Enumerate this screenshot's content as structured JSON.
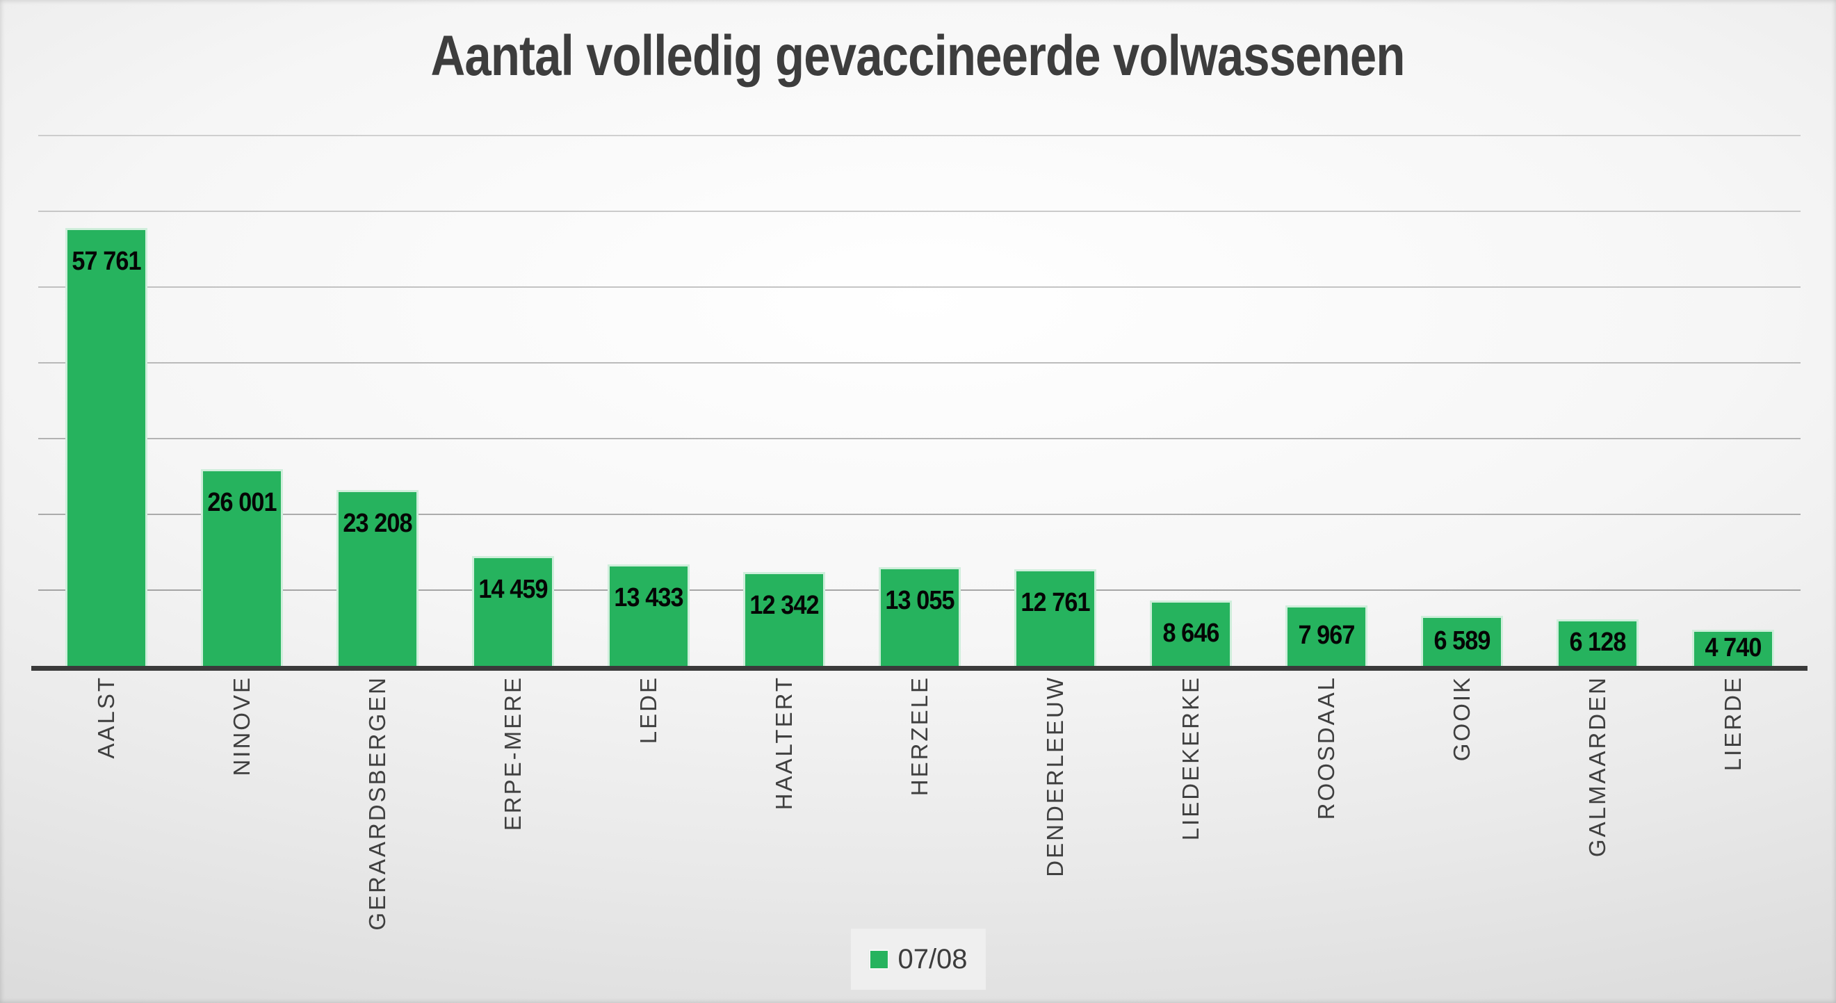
{
  "title": "Aantal volledig gevaccineerde volwassenen",
  "legend": {
    "series_label": "07/08",
    "position": "bottom"
  },
  "colors": {
    "bar": "#26b35e",
    "gridline": "#8f8f8f",
    "axis": "#3a3a3a",
    "title_text": "#3d3d3d",
    "value_label_text": "#050505",
    "category_text": "#3f3f3f",
    "legend_background": "#efefef",
    "background_edge": "#c0c0c0",
    "background_center": "#ffffff"
  },
  "chart_data": {
    "type": "bar",
    "title": "Aantal volledig gevaccineerde volwassenen",
    "categories": [
      "AALST",
      "NINOVE",
      "GERAARDSBERGEN",
      "ERPE-MERE",
      "LEDE",
      "HAALTERT",
      "HERZELE",
      "DENDERLEEUW",
      "LIEDEKERKE",
      "ROOSDAAL",
      "GOOIK",
      "GALMAARDEN",
      "LIERDE"
    ],
    "series": [
      {
        "name": "07/08",
        "color": "#26b35e",
        "values": [
          57761,
          26001,
          23208,
          14459,
          13433,
          12342,
          13055,
          12761,
          8646,
          7967,
          6589,
          6128,
          4740
        ],
        "data_labels": [
          "57 761",
          "26 001",
          "23 208",
          "14 459",
          "13 433",
          "12 342",
          "13 055",
          "12 761",
          "8 646",
          "7 967",
          "6 589",
          "6 128",
          "4 740"
        ]
      }
    ],
    "xlabel": "",
    "ylabel": "",
    "ylim": [
      0,
      70000
    ],
    "gridline_interval": 10000,
    "grid": "horizontal",
    "y_axis_tick_labels_visible": false,
    "category_label_rotation": "vertical-bottom-to-top",
    "data_label_position": "inside-end",
    "legend_position": "bottom"
  }
}
